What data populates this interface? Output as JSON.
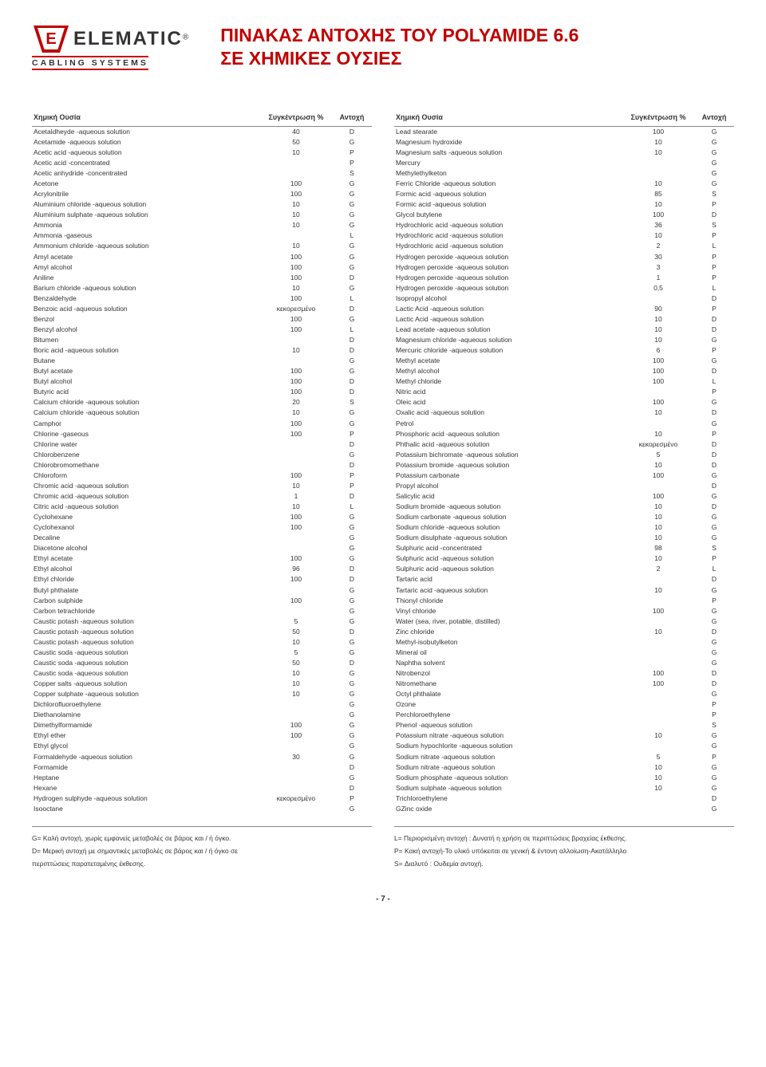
{
  "logo": {
    "brand": "ELEMATIC",
    "reg": "®",
    "sub": "CABLING SYSTEMS"
  },
  "title": {
    "line1": "ΠΙΝΑΚΑΣ ΑΝΤΟΧΗΣ ΤΟΥ POLYAMIDE 6.6",
    "line2": "ΣΕ ΧΗΜΙΚΕΣ ΟΥΣΙΕΣ"
  },
  "headers": {
    "chemical": "Χημική Ουσία",
    "concentration": "Συγκέντρωση %",
    "resistance": "Αντοχή"
  },
  "left_rows": [
    [
      "Acetaldheyde -aqueous solution",
      "40",
      "D"
    ],
    [
      "Acetamide -aqueous solution",
      "50",
      "G"
    ],
    [
      "Acetic acid -aqueous solution",
      "10",
      "P"
    ],
    [
      "Acetic acid -concentrated",
      "",
      "P"
    ],
    [
      "Acetic anhydride -concentrated",
      "",
      "S"
    ],
    [
      "Acetone",
      "100",
      "G"
    ],
    [
      "Acrylonitrile",
      "100",
      "G"
    ],
    [
      "Aluminium chloride -aqueous solution",
      "10",
      "G"
    ],
    [
      "Aluminium sulphate -aqueous solution",
      "10",
      "G"
    ],
    [
      "Ammonia",
      "10",
      "G"
    ],
    [
      "Ammonia -gaseous",
      "",
      "L"
    ],
    [
      "Ammonium chloride -aqueous solution",
      "10",
      "G"
    ],
    [
      "Amyl acetate",
      "100",
      "G"
    ],
    [
      "Amyl alcohol",
      "100",
      "G"
    ],
    [
      "Aniline",
      "100",
      "D"
    ],
    [
      "Barium chloride -aqueous solution",
      "10",
      "G"
    ],
    [
      "Benzaldehyde",
      "100",
      "L"
    ],
    [
      "Benzoic acid -aqueous solution",
      "κεκορεσμένο",
      "D"
    ],
    [
      "Benzol",
      "100",
      "G"
    ],
    [
      "Benzyl alcohol",
      "100",
      "L"
    ],
    [
      "Bitumen",
      "",
      "D"
    ],
    [
      "Boric acid -aqueous solution",
      "10",
      "D"
    ],
    [
      "Butane",
      "",
      "G"
    ],
    [
      "Butyl acetate",
      "100",
      "G"
    ],
    [
      "Butyl alcohol",
      "100",
      "D"
    ],
    [
      "Butyric acid",
      "100",
      "D"
    ],
    [
      "Calcium chloride -aqueous solution",
      "20",
      "S"
    ],
    [
      "Calcium chloride -aqueous solution",
      "10",
      "G"
    ],
    [
      "Camphor",
      "100",
      "G"
    ],
    [
      "Chlorine -gaseous",
      "100",
      "P"
    ],
    [
      "Chlorine water",
      "",
      "D"
    ],
    [
      "Chlorobenzene",
      "",
      "G"
    ],
    [
      "Chlorobromomethane",
      "",
      "D"
    ],
    [
      "Chloroform",
      "100",
      "P"
    ],
    [
      "Chromic acid -aqueous solution",
      "10",
      "P"
    ],
    [
      "Chromic acid -aqueous solution",
      "1",
      "D"
    ],
    [
      "Citric acid -aqueous solution",
      "10",
      "L"
    ],
    [
      "Cyclohexane",
      "100",
      "G"
    ],
    [
      "Cyclohexanol",
      "100",
      "G"
    ],
    [
      "Decaline",
      "",
      "G"
    ],
    [
      "Diacetone alcohol",
      "",
      "G"
    ],
    [
      "Ethyl acetate",
      "100",
      "G"
    ],
    [
      "Ethyl alcohol",
      "96",
      "D"
    ],
    [
      "Ethyl chloride",
      "100",
      "D"
    ],
    [
      "Butyl phthalate",
      "",
      "G"
    ],
    [
      "Carbon sulphide",
      "100",
      "G"
    ],
    [
      "Carbon tetrachloride",
      "",
      "G"
    ],
    [
      "Caustic potash -aqueous solution",
      "5",
      "G"
    ],
    [
      "Caustic potash -aqueous solution",
      "50",
      "D"
    ],
    [
      "Caustic potash -aqueous solution",
      "10",
      "G"
    ],
    [
      "Caustic soda -aqueous solution",
      "5",
      "G"
    ],
    [
      "Caustic soda -aqueous solution",
      "50",
      "D"
    ],
    [
      "Caustic soda -aqueous solution",
      "10",
      "G"
    ],
    [
      "Copper salts -aqueous solution",
      "10",
      "G"
    ],
    [
      "Copper sulphate -aqueous solution",
      "10",
      "G"
    ],
    [
      "Dichlorofluoroethylene",
      "",
      "G"
    ],
    [
      "Diethanolamine",
      "",
      "G"
    ],
    [
      "Dimethylformamide",
      "100",
      "G"
    ],
    [
      "Ethyl ether",
      "100",
      "G"
    ],
    [
      "Ethyl glycol",
      "",
      "G"
    ],
    [
      "Formaldehyde -aqueous solution",
      "30",
      "G"
    ],
    [
      "Formamide",
      "",
      "D"
    ],
    [
      "Heptane",
      "",
      "G"
    ],
    [
      "Hexane",
      "",
      "D"
    ],
    [
      "Hydrogen sulphyde -aqueous solution",
      "κεκορεσμένο",
      "P"
    ],
    [
      "Isooctane",
      "",
      "G"
    ]
  ],
  "right_rows": [
    [
      "Lead stearate",
      "100",
      "G"
    ],
    [
      "Magnesium hydroxide",
      "10",
      "G"
    ],
    [
      "Magnesium salts -aqueous solution",
      "10",
      "G"
    ],
    [
      "Mercury",
      "",
      "G"
    ],
    [
      "Methylethylketon",
      "",
      "G"
    ],
    [
      "Ferric Chloride -aqueous solution",
      "10",
      "G"
    ],
    [
      "Formic acid -aqueous solution",
      "85",
      "S"
    ],
    [
      "Formic acid -aqueous solution",
      "10",
      "P"
    ],
    [
      "Glycol butylene",
      "100",
      "D"
    ],
    [
      "Hydrochloric acid -aqueous solution",
      "36",
      "S"
    ],
    [
      "Hydrochloric acid -aqueous solution",
      "10",
      "P"
    ],
    [
      "Hydrochloric acid -aqueous solution",
      "2",
      "L"
    ],
    [
      "Hydrogen peroxide -aqueous solution",
      "30",
      "P"
    ],
    [
      "Hydrogen peroxide -aqueous solution",
      "3",
      "P"
    ],
    [
      "Hydrogen peroxide -aqueous solution",
      "1",
      "P"
    ],
    [
      "Hydrogen peroxide -aqueous solution",
      "0,5",
      "L"
    ],
    [
      "Isopropyl alcohol",
      "",
      "D"
    ],
    [
      "Lactic Acid -aqueous solution",
      "90",
      "P"
    ],
    [
      "Lactic Acid -aqueous solution",
      "10",
      "D"
    ],
    [
      "Lead acetate -aqueous solution",
      "10",
      "D"
    ],
    [
      "Magnesium chloride -aqueous solution",
      "10",
      "G"
    ],
    [
      "Mercuric chloride -aqueous solution",
      "6",
      "P"
    ],
    [
      "Methyl acetate",
      "100",
      "G"
    ],
    [
      "Methyl alcohol",
      "100",
      "D"
    ],
    [
      "Methyl chloride",
      "100",
      "L"
    ],
    [
      "Nitric acid",
      "",
      "P"
    ],
    [
      "Oleic acid",
      "100",
      "G"
    ],
    [
      "Oxalic acid -aqueous solution",
      "10",
      "D"
    ],
    [
      "Petrol",
      "",
      "G"
    ],
    [
      "Phosphoric acid -aqueous solution",
      "10",
      "P"
    ],
    [
      "Phthalic acid -aqueous solution",
      "κεκορεσμένο",
      "D"
    ],
    [
      "Potassium bichromate -aqueous solution",
      "5",
      "D"
    ],
    [
      "Potassium bromide -aqueous solution",
      "10",
      "D"
    ],
    [
      "Potassium carbonate",
      "100",
      "G"
    ],
    [
      "Propyl alcohol",
      "",
      "D"
    ],
    [
      "Salicylic acid",
      "100",
      "G"
    ],
    [
      "Sodium bromide -aqueous solution",
      "10",
      "D"
    ],
    [
      "Sodium carbonate -aqueous solution",
      "10",
      "G"
    ],
    [
      "Sodium chloride -aqueous solution",
      "10",
      "G"
    ],
    [
      "Sodium disulphate -aqueous solution",
      "10",
      "G"
    ],
    [
      "Sulphuric acid -concentrated",
      "98",
      "S"
    ],
    [
      "Sulphuric acid -aqueous solution",
      "10",
      "P"
    ],
    [
      "Sulphuric acid -aqueous solution",
      "2",
      "L"
    ],
    [
      "Tartaric acid",
      "",
      "D"
    ],
    [
      "Tartaric acid -aqueous solution",
      "10",
      "G"
    ],
    [
      "Thionyl chloride",
      "",
      "P"
    ],
    [
      "Vinyl chloride",
      "100",
      "G"
    ],
    [
      "Water (sea, river, potable, distilled)",
      "",
      "G"
    ],
    [
      "Zinc chloride",
      "10",
      "D"
    ],
    [
      "Methyl-isobutylketon",
      "",
      "G"
    ],
    [
      "Mineral oil",
      "",
      "G"
    ],
    [
      "Naphtha solvent",
      "",
      "G"
    ],
    [
      "Nitrobenzol",
      "100",
      "D"
    ],
    [
      "Nitromethane",
      "100",
      "D"
    ],
    [
      "Octyl phthalate",
      "",
      "G"
    ],
    [
      "Ozone",
      "",
      "P"
    ],
    [
      "Perchloroethylene",
      "",
      "P"
    ],
    [
      "Phenol -aqueous solution",
      "",
      "S"
    ],
    [
      "Potassium nitrate -aqueous solution",
      "10",
      "G"
    ],
    [
      "Sodium hypochlorite -aqueous solution",
      "",
      "G"
    ],
    [
      "Sodium nitrate -aqueous solution",
      "5",
      "P"
    ],
    [
      "Sodium nitrate -aqueous solution",
      "10",
      "G"
    ],
    [
      "Sodium phosphate -aqueous solution",
      "10",
      "G"
    ],
    [
      "Sodium sulphate -aqueous solution",
      "10",
      "G"
    ],
    [
      "Trichloroethylene",
      "",
      "D"
    ],
    [
      "GZinc oxide",
      "",
      "G"
    ]
  ],
  "legend_left": [
    "G= Καλή αντοχή, χωρίς εμφανείς μεταβολές σε βάρος και / ή όγκο.",
    "D= Μερική αντοχή με σημαντικές μεταβολές σε βάρος και / ή όγκο σε",
    "περιπτώσεις παρατεταμένης έκθεσης."
  ],
  "legend_right": [
    "L= Περιορισμένη αντοχή : Δυνατή η χρήση σε περιπτώσεις βραχείας έκθεσης.",
    "P= Κακή αντοχή-Το υλικό υπόκειται σε γενική & έντονη αλλοίωση-Ακατάλληλο",
    "S= Διαλυτό : Ουδεμία αντοχή."
  ],
  "page_number": "- 7 -",
  "colors": {
    "accent": "#c00000",
    "text": "#333333",
    "rule": "#888888"
  }
}
